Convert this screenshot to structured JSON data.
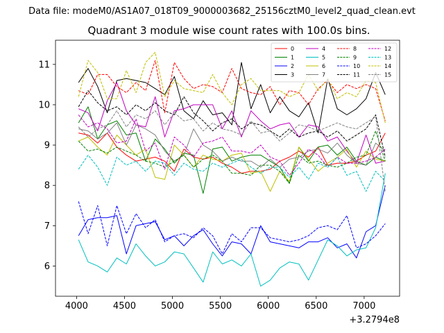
{
  "chart_data": {
    "type": "line",
    "suptitle": "Data file: modeM0/AS1A07_018T09_9000003682_25156cztM0_level2_quad_clean.evt",
    "title": "Quadrant 3 module wise count rates with 100.0s bins.",
    "xlabel": "",
    "ylabel": "",
    "x_offset_label": "+3.2794e8",
    "xlim": [
      3780,
      7370
    ],
    "ylim": [
      5.25,
      11.6
    ],
    "xticks": [
      4000,
      4500,
      5000,
      5500,
      6000,
      6500,
      7000
    ],
    "yticks": [
      6,
      7,
      8,
      9,
      10,
      11
    ],
    "legend_position": "top-right",
    "x": [
      4020,
      4120,
      4220,
      4320,
      4420,
      4520,
      4620,
      4720,
      4820,
      4920,
      5020,
      5120,
      5220,
      5320,
      5420,
      5520,
      5620,
      5720,
      5820,
      5920,
      6020,
      6120,
      6220,
      6320,
      6420,
      6520,
      6620,
      6720,
      6820,
      6920,
      7020,
      7120,
      7220
    ],
    "series": [
      {
        "name": "0",
        "color": "#ff0000",
        "dash": "solid",
        "values": [
          9.3,
          9.25,
          9.05,
          9.3,
          8.95,
          8.75,
          8.6,
          8.65,
          8.7,
          8.6,
          8.35,
          8.9,
          8.7,
          8.65,
          8.7,
          8.55,
          8.45,
          8.3,
          8.35,
          8.35,
          8.4,
          8.6,
          8.7,
          8.85,
          8.7,
          8.95,
          8.5,
          8.55,
          8.55,
          8.6,
          8.75,
          8.85,
          9.3
        ]
      },
      {
        "name": "1",
        "color": "#008000",
        "dash": "solid",
        "values": [
          9.55,
          9.95,
          9.15,
          9.5,
          9.6,
          9.25,
          9.3,
          8.6,
          9.15,
          8.9,
          8.55,
          8.8,
          8.75,
          7.8,
          8.9,
          8.95,
          8.6,
          8.7,
          8.75,
          8.75,
          8.6,
          8.45,
          8.05,
          8.95,
          8.6,
          8.95,
          9.0,
          8.75,
          8.95,
          8.6,
          8.5,
          8.7,
          8.6
        ]
      },
      {
        "name": "2",
        "color": "#0000ff",
        "dash": "solid",
        "values": [
          6.75,
          7.15,
          7.2,
          7.2,
          7.25,
          6.3,
          7.0,
          7.05,
          7.1,
          6.65,
          6.75,
          6.5,
          6.75,
          6.9,
          6.55,
          6.25,
          6.6,
          6.55,
          6.3,
          7.0,
          6.6,
          6.55,
          6.5,
          6.45,
          6.6,
          6.6,
          6.7,
          6.45,
          6.55,
          6.2,
          6.85,
          7.0,
          8.0
        ]
      },
      {
        "name": "3",
        "color": "#000000",
        "dash": "solid",
        "values": [
          10.55,
          10.9,
          10.45,
          9.8,
          10.6,
          10.65,
          10.6,
          10.55,
          10.4,
          10.25,
          10.7,
          9.85,
          9.65,
          10.1,
          9.75,
          9.8,
          9.5,
          11.05,
          9.9,
          10.5,
          9.8,
          10.2,
          9.85,
          9.7,
          10.05,
          9.3,
          10.65,
          9.9,
          9.75,
          9.9,
          10.15,
          10.8,
          10.25
        ]
      },
      {
        "name": "4",
        "color": "#bf00bf",
        "dash": "solid",
        "values": [
          9.9,
          9.8,
          9.35,
          10.1,
          10.55,
          9.85,
          9.5,
          9.45,
          10.2,
          9.2,
          9.85,
          9.9,
          10.0,
          10.0,
          10.0,
          9.4,
          9.85,
          9.2,
          9.85,
          9.6,
          9.4,
          9.5,
          9.55,
          9.2,
          9.5,
          9.45,
          9.1,
          9.2,
          8.85,
          8.55,
          9.25,
          8.55,
          8.6
        ]
      },
      {
        "name": "5",
        "color": "#00bfbf",
        "dash": "solid",
        "values": [
          6.65,
          6.1,
          6.0,
          5.85,
          6.2,
          6.05,
          6.55,
          6.25,
          6.0,
          6.1,
          6.35,
          6.3,
          5.95,
          5.6,
          6.35,
          6.05,
          6.15,
          6.0,
          6.3,
          5.5,
          5.65,
          5.95,
          6.1,
          6.05,
          5.65,
          6.15,
          6.65,
          6.5,
          6.25,
          6.4,
          6.45,
          6.95,
          8.3
        ]
      },
      {
        "name": "6",
        "color": "#bfbf00",
        "dash": "solid",
        "values": [
          9.1,
          9.2,
          8.95,
          8.75,
          9.25,
          9.0,
          8.75,
          8.9,
          8.2,
          8.15,
          9.0,
          8.75,
          8.45,
          8.75,
          8.65,
          8.6,
          8.75,
          8.8,
          8.3,
          8.35,
          7.85,
          8.35,
          8.1,
          8.95,
          8.65,
          8.35,
          8.55,
          8.7,
          8.9,
          8.45,
          8.85,
          8.65,
          8.6
        ]
      },
      {
        "name": "7",
        "color": "#808080",
        "dash": "solid",
        "values": [
          9.4,
          9.35,
          9.15,
          9.3,
          9.55,
          9.0,
          9.5,
          9.4,
          9.25,
          8.85,
          8.6,
          8.75,
          9.4,
          9.0,
          8.85,
          8.6,
          8.7,
          8.6,
          8.6,
          8.45,
          8.65,
          8.45,
          8.65,
          8.7,
          8.85,
          8.9,
          8.8,
          9.05,
          8.75,
          8.55,
          8.5,
          9.05,
          8.85
        ]
      },
      {
        "name": "8",
        "color": "#ff0000",
        "dash": "dashed",
        "values": [
          10.35,
          10.25,
          10.75,
          10.75,
          10.45,
          10.3,
          10.55,
          10.35,
          11.1,
          9.8,
          11.05,
          10.65,
          10.4,
          10.5,
          10.45,
          10.3,
          10.9,
          10.4,
          10.3,
          10.25,
          10.45,
          10.0,
          10.35,
          10.3,
          10.0,
          10.4,
          10.6,
          10.3,
          10.5,
          10.4,
          10.5,
          10.4,
          9.6
        ]
      },
      {
        "name": "9",
        "color": "#008000",
        "dash": "dashed",
        "values": [
          9.1,
          8.85,
          8.9,
          8.8,
          8.95,
          8.85,
          8.75,
          8.6,
          8.55,
          8.45,
          8.6,
          8.75,
          8.45,
          8.65,
          8.75,
          8.6,
          8.3,
          8.3,
          8.25,
          8.5,
          8.5,
          8.35,
          8.05,
          8.75,
          8.55,
          8.6,
          8.5,
          8.45,
          8.55,
          8.7,
          8.75,
          9.35,
          8.6
        ]
      },
      {
        "name": "10",
        "color": "#0000ff",
        "dash": "dashed",
        "values": [
          7.6,
          6.8,
          7.5,
          6.5,
          7.5,
          6.8,
          7.3,
          6.95,
          7.15,
          6.6,
          6.75,
          6.8,
          6.7,
          6.95,
          6.75,
          6.3,
          6.8,
          6.6,
          6.95,
          6.95,
          6.7,
          6.65,
          6.6,
          6.65,
          6.75,
          6.95,
          7.0,
          6.9,
          7.25,
          6.45,
          6.55,
          6.75,
          7.05
        ]
      },
      {
        "name": "11",
        "color": "#000000",
        "dash": "dashed",
        "values": [
          9.95,
          10.35,
          10.05,
          9.85,
          9.95,
          9.75,
          10.0,
          9.85,
          10.05,
          9.85,
          9.75,
          10.2,
          9.8,
          9.6,
          9.35,
          9.55,
          9.65,
          9.4,
          9.55,
          9.5,
          9.35,
          9.2,
          9.4,
          9.2,
          9.3,
          9.35,
          9.2,
          9.35,
          9.1,
          9.25,
          9.4,
          9.75,
          8.7
        ]
      },
      {
        "name": "12",
        "color": "#bf00bf",
        "dash": "dashed",
        "values": [
          9.75,
          9.45,
          9.55,
          9.4,
          9.05,
          9.1,
          9.65,
          8.85,
          9.05,
          8.4,
          9.2,
          9.0,
          8.7,
          9.05,
          9.1,
          9.2,
          8.85,
          8.85,
          8.8,
          9.0,
          8.7,
          8.6,
          8.25,
          8.55,
          8.9,
          8.75,
          8.45,
          8.7,
          8.55,
          8.55,
          8.6,
          8.7,
          8.9
        ]
      },
      {
        "name": "13",
        "color": "#00bfbf",
        "dash": "dashed",
        "values": [
          8.4,
          8.75,
          8.45,
          8.0,
          8.7,
          8.5,
          8.6,
          8.35,
          8.6,
          8.55,
          8.25,
          8.55,
          8.4,
          8.35,
          8.55,
          8.45,
          8.55,
          8.65,
          8.45,
          8.3,
          8.45,
          8.45,
          8.2,
          8.45,
          8.15,
          8.55,
          8.45,
          8.7,
          8.25,
          8.35,
          7.85,
          8.35,
          8.1
        ]
      },
      {
        "name": "14",
        "color": "#bfbf00",
        "dash": "dashed",
        "values": [
          10.2,
          11.1,
          10.8,
          10.15,
          10.15,
          10.85,
          10.3,
          11.05,
          11.3,
          10.2,
          10.6,
          10.4,
          10.35,
          10.3,
          10.75,
          10.3,
          10.0,
          10.5,
          10.65,
          10.35,
          10.35,
          10.35,
          10.2,
          10.3,
          10.75,
          10.35,
          10.65,
          10.15,
          10.3,
          10.2,
          10.6,
          10.55,
          9.55
        ]
      },
      {
        "name": "15",
        "color": "#808080",
        "dash": "dashed",
        "values": [
          9.45,
          9.2,
          9.4,
          9.5,
          9.85,
          9.45,
          9.75,
          9.65,
          9.85,
          9.5,
          9.8,
          9.6,
          9.65,
          9.35,
          9.55,
          9.4,
          9.35,
          9.25,
          9.6,
          9.3,
          9.35,
          9.1,
          9.3,
          9.5,
          9.45,
          9.35,
          9.45,
          9.55,
          9.45,
          9.4,
          9.55,
          9.7,
          7.85
        ]
      }
    ]
  }
}
